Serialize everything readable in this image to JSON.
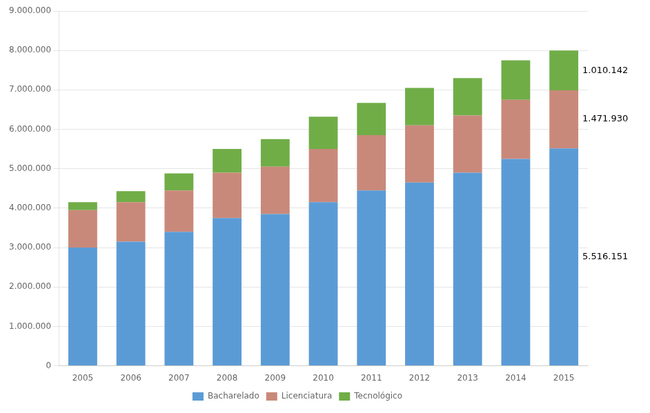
{
  "chart_data": {
    "type": "bar",
    "stacked": true,
    "categories": [
      "2005",
      "2006",
      "2007",
      "2008",
      "2009",
      "2010",
      "2011",
      "2012",
      "2013",
      "2014",
      "2015"
    ],
    "series": [
      {
        "name": "Bacharelado",
        "color": "#5B9BD5",
        "values": [
          3000000,
          3150000,
          3400000,
          3750000,
          3850000,
          4150000,
          4450000,
          4650000,
          4900000,
          5250000,
          5516151
        ]
      },
      {
        "name": "Licenciatura",
        "color": "#C9897A",
        "values": [
          950000,
          1000000,
          1050000,
          1150000,
          1200000,
          1350000,
          1400000,
          1450000,
          1450000,
          1500000,
          1471930
        ]
      },
      {
        "name": "Tecnológico",
        "color": "#70AD47",
        "values": [
          200000,
          280000,
          430000,
          600000,
          700000,
          820000,
          820000,
          950000,
          950000,
          1000000,
          1010142
        ]
      }
    ],
    "ylim": [
      0,
      9000000
    ],
    "yticks": [
      0,
      {
        "value": 1000000,
        "label": "1.000.000"
      },
      {
        "value": 2000000,
        "label": "2.000.000"
      },
      {
        "value": 3000000,
        "label": "3.000.000"
      },
      {
        "value": 4000000,
        "label": "4.000.000"
      },
      {
        "value": 5000000,
        "label": "5.000.000"
      },
      {
        "value": 6000000,
        "label": "6.000.000"
      },
      {
        "value": 7000000,
        "label": "7.000.000"
      },
      {
        "value": 8000000,
        "label": "8.000.000"
      },
      {
        "value": 9000000,
        "label": "9.000.000"
      }
    ],
    "grid": true,
    "legend": "bottom",
    "annotations": [
      {
        "text": "1.010.142",
        "series": "Tecnológico",
        "category": "2015"
      },
      {
        "text": "1.471.930",
        "series": "Licenciatura",
        "category": "2015"
      },
      {
        "text": "5.516.151",
        "series": "Bacharelado",
        "category": "2015"
      }
    ]
  }
}
